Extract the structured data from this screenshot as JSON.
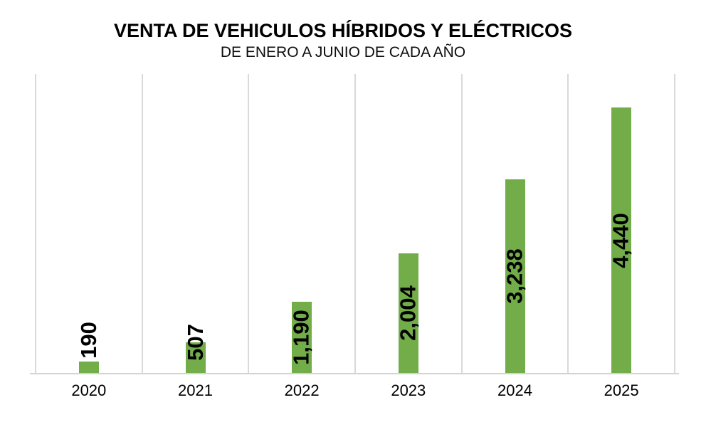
{
  "title": "VENTA DE VEHICULOS HÍBRIDOS Y ELÉCTRICOS",
  "subtitle": "DE ENERO A JUNIO DE CADA AÑO",
  "chart_data": {
    "type": "bar",
    "title": "VENTA DE VEHICULOS HÍBRIDOS Y ELÉCTRICOS",
    "subtitle": "DE ENERO A JUNIO DE CADA AÑO",
    "categories": [
      "2020",
      "2021",
      "2022",
      "2023",
      "2024",
      "2025"
    ],
    "values": [
      190,
      507,
      1190,
      2004,
      3238,
      4440
    ],
    "value_labels": [
      "190",
      "507",
      "1,190",
      "2,004",
      "3,238",
      "4,440"
    ],
    "xlabel": "",
    "ylabel": "",
    "ylim": [
      0,
      5000
    ],
    "y_axis_visible": false,
    "legend": "none",
    "grid": "vertical-category-separators-only",
    "value_label_rotation_deg": -90,
    "colors": {
      "bar": "#72AD4A",
      "gridline": "#D9D9D9",
      "axis_line": "#D3D3D3",
      "value_label": "#000000",
      "tick_label": "#000000",
      "background": "#FFFFFF"
    }
  }
}
